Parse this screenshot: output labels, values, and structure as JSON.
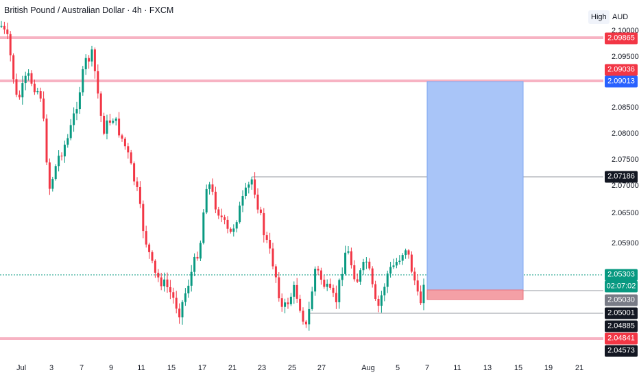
{
  "header": {
    "title": "British Pound / Australian Dollar · 4h · FXCM"
  },
  "top_buttons": {
    "high": "High",
    "currency": "AUD"
  },
  "price_axis": {
    "ticks": [
      "2.10000",
      "2.09500",
      "2.08500",
      "2.08000",
      "2.07500",
      "2.07000",
      "2.06500",
      "2.05900"
    ],
    "tags": [
      {
        "text": "2.09865",
        "color": "#f23645",
        "fg": "#ffffff"
      },
      {
        "text": "2.09036",
        "color": "#f23645",
        "fg": "#ffffff"
      },
      {
        "text": "2.09013",
        "color": "#2962ff",
        "fg": "#ffffff"
      },
      {
        "text": "2.07186",
        "color": "#131722",
        "fg": "#ffffff"
      },
      {
        "text": "2.05303",
        "color": "#089981",
        "fg": "#ffffff"
      },
      {
        "text": "02:07:02",
        "color": "#089981",
        "fg": "#ffffff"
      },
      {
        "text": "2.05030",
        "color": "#787b86",
        "fg": "#ffffff"
      },
      {
        "text": "2.05001",
        "color": "#131722",
        "fg": "#ffffff"
      },
      {
        "text": "2.04885",
        "color": "#131722",
        "fg": "#ffffff"
      },
      {
        "text": "2.04841",
        "color": "#f23645",
        "fg": "#ffffff"
      },
      {
        "text": "2.04573",
        "color": "#131722",
        "fg": "#ffffff"
      }
    ]
  },
  "time_axis": {
    "labels": [
      "Jul",
      "3",
      "7",
      "9",
      "11",
      "15",
      "17",
      "21",
      "23",
      "25",
      "27",
      "Aug",
      "5",
      "7",
      "11",
      "13",
      "15",
      "19",
      "21"
    ]
  },
  "colors": {
    "up": "#089981",
    "down": "#f23645",
    "target_zone": "#a9c5f8",
    "stop_zone": "#f4a0a6",
    "hline": "#f7b3c3"
  }
}
